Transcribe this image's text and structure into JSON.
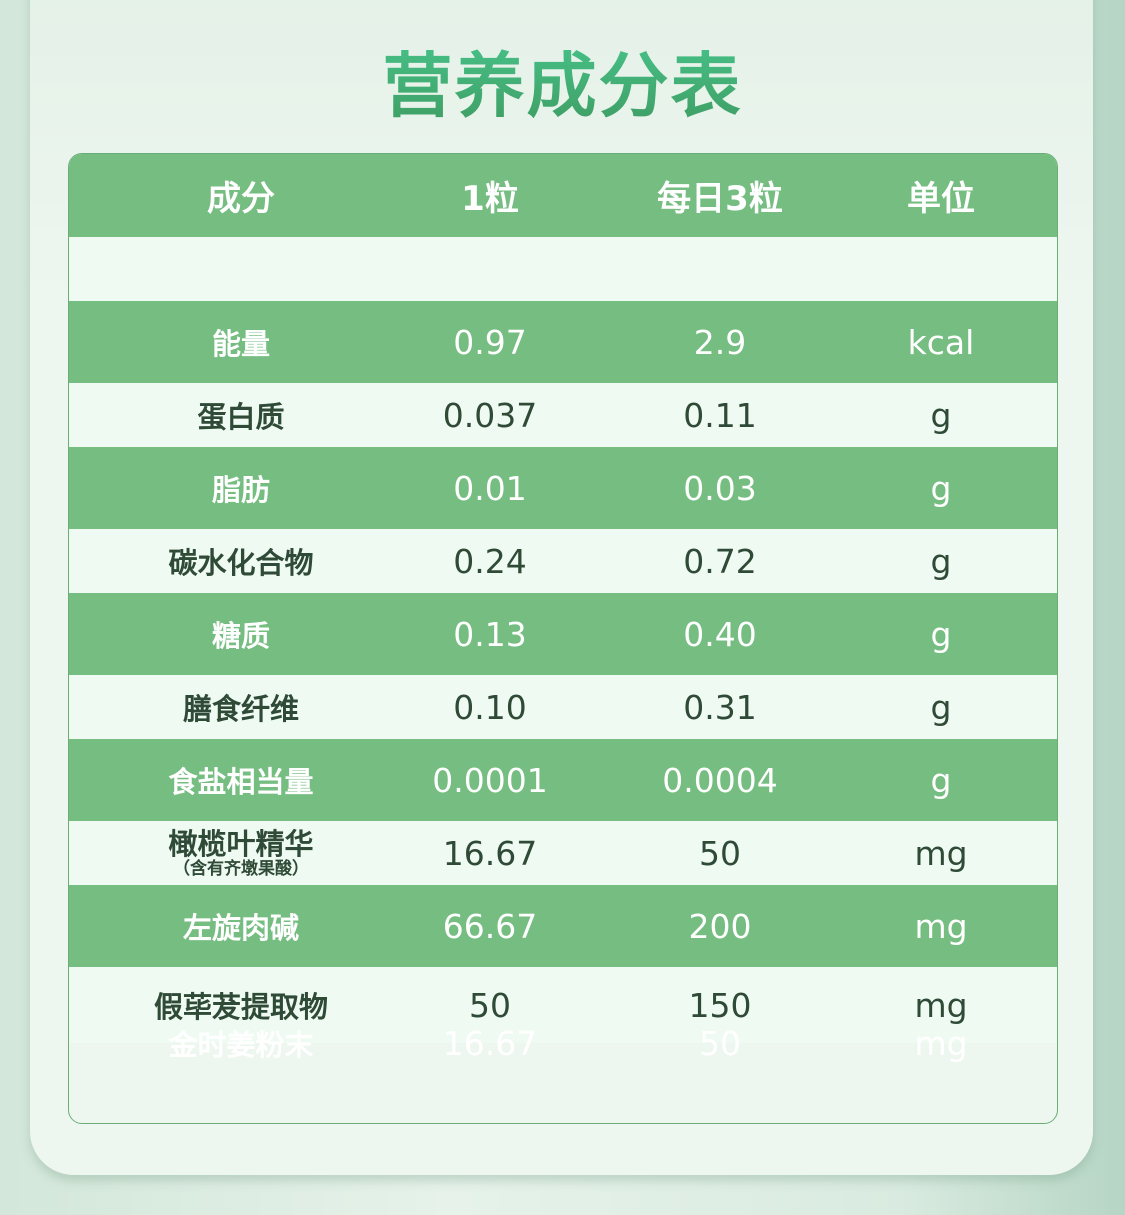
{
  "title": "营养成分表",
  "colors": {
    "row_green": "#75bd80",
    "row_light": "#effbf2",
    "title_green": "#3fae74"
  },
  "table": {
    "headers": [
      "成分",
      "1粒",
      "每日3粒",
      "单位"
    ],
    "rows": [
      {
        "name": "",
        "per_1": "",
        "per_3": "",
        "unit": ""
      },
      {
        "name": "能量",
        "per_1": "0.97",
        "per_3": "2.9",
        "unit": "kcal"
      },
      {
        "name": "蛋白质",
        "per_1": "0.037",
        "per_3": "0.11",
        "unit": "g"
      },
      {
        "name": "脂肪",
        "per_1": "0.01",
        "per_3": "0.03",
        "unit": "g"
      },
      {
        "name": "碳水化合物",
        "per_1": "0.24",
        "per_3": "0.72",
        "unit": "g"
      },
      {
        "name": "糖质",
        "per_1": "0.13",
        "per_3": "0.40",
        "unit": "g"
      },
      {
        "name": "膳食纤维",
        "per_1": "0.10",
        "per_3": "0.31",
        "unit": "g"
      },
      {
        "name": "食盐相当量",
        "per_1": "0.0001",
        "per_3": "0.0004",
        "unit": "g"
      },
      {
        "name": "橄榄叶精华",
        "note": "（含有齐墩果酸）",
        "per_1": "16.67",
        "per_3": "50",
        "unit": "mg"
      },
      {
        "name": "左旋肉碱",
        "per_1": "66.67",
        "per_3": "200",
        "unit": "mg"
      },
      {
        "name": "假荜茇提取物",
        "per_1": "50",
        "per_3": "150",
        "unit": "mg"
      },
      {
        "name": "金时姜粉末",
        "per_1": "16.67",
        "per_3": "50",
        "unit": "mg"
      }
    ]
  }
}
